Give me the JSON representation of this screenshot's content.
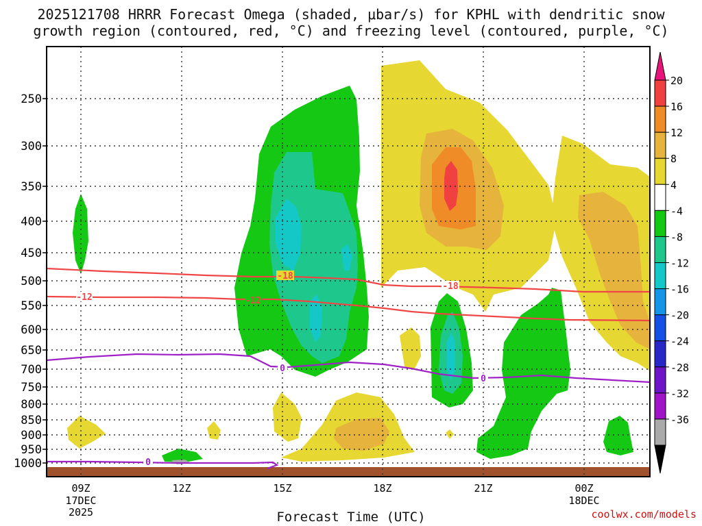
{
  "title_line1": "2025121708 HRRR Forecast Omega (shaded, μbar/s) for KPHL with dendritic snow",
  "title_line2": "growth region (contoured, red, °C) and freezing level (contoured, purple, °C)",
  "xlabel": "Forecast Time (UTC)",
  "credit": "coolwx.com/models",
  "chart_data": {
    "type": "contour",
    "x_ticks": [
      {
        "label": "09Z",
        "sub": [
          "17DEC",
          "2025"
        ]
      },
      {
        "label": "12Z",
        "sub": []
      },
      {
        "label": "15Z",
        "sub": []
      },
      {
        "label": "18Z",
        "sub": []
      },
      {
        "label": "21Z",
        "sub": []
      },
      {
        "label": "00Z",
        "sub": [
          "18DEC"
        ]
      }
    ],
    "y_ticks": [
      "250",
      "300",
      "350",
      "400",
      "450",
      "500",
      "550",
      "600",
      "650",
      "700",
      "750",
      "800",
      "850",
      "900",
      "950",
      "1000"
    ],
    "y_axis": "pressure (hPa), reversed",
    "colorbar": {
      "labels": [
        "20",
        "16",
        "12",
        "8",
        "4",
        "-4",
        "-8",
        "-12",
        "-16",
        "-20",
        "-24",
        "-28",
        "-32",
        "-36"
      ],
      "colors": [
        "#e8147a",
        "#f04040",
        "#f08c28",
        "#e6b43c",
        "#e6d732",
        "#ffffff",
        "#14c814",
        "#1ec88c",
        "#14c8c8",
        "#1496e6",
        "#1450e6",
        "#2828c8",
        "#6e14c8",
        "#a014c8",
        "#aaaaaa",
        "#000000"
      ]
    },
    "contours": [
      {
        "name": "-18",
        "color": "#f04545"
      },
      {
        "name": "-12",
        "color": "#f04545"
      },
      {
        "name": "0",
        "color": "#a020c8"
      }
    ]
  }
}
